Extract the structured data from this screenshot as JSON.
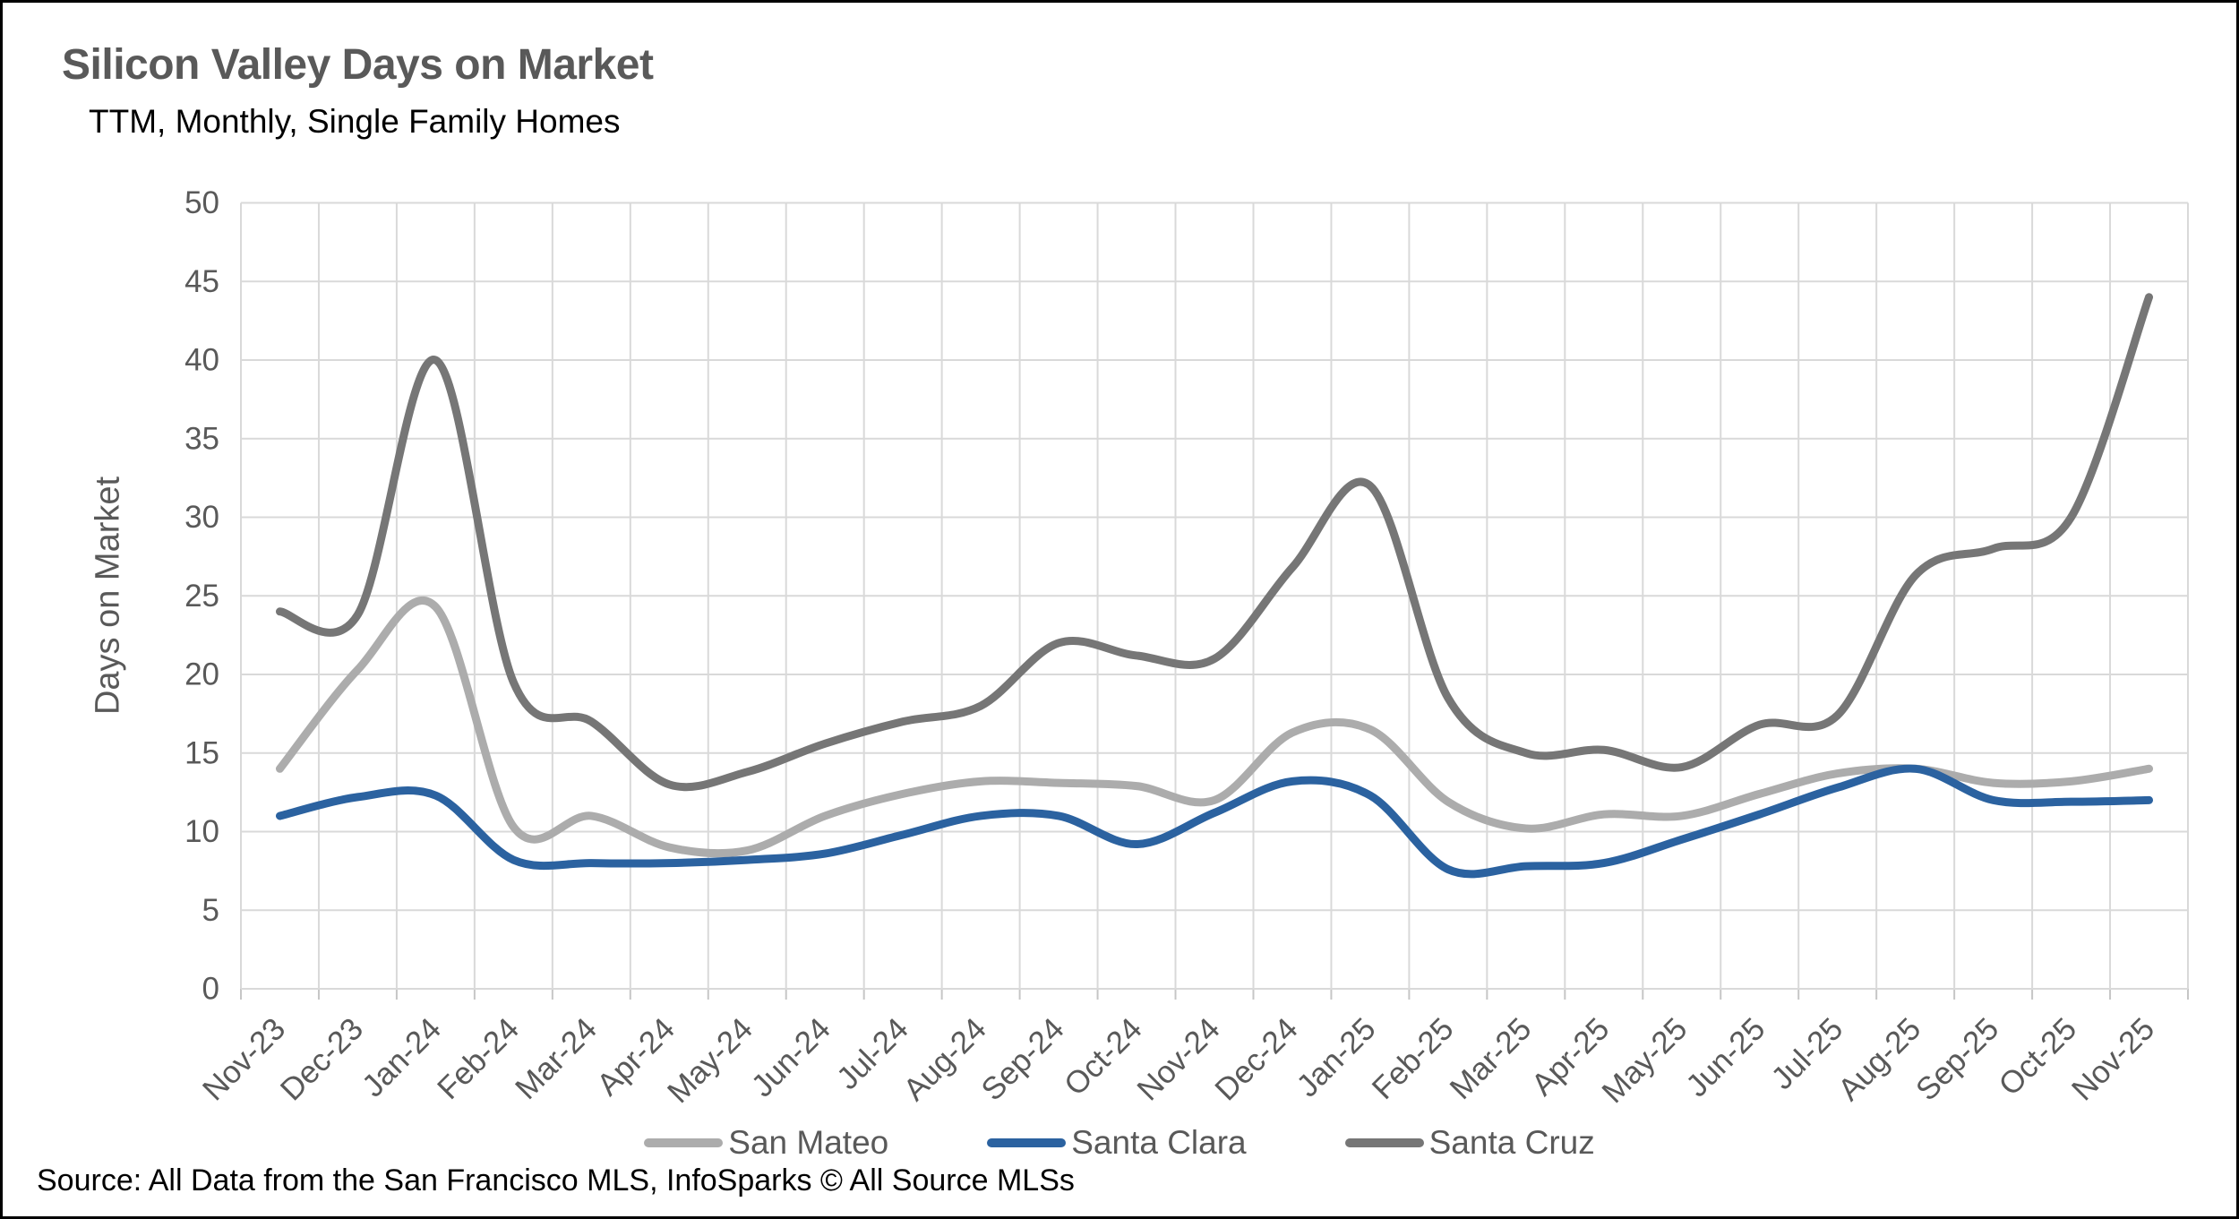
{
  "header": {
    "title": "Silicon Valley Days on Market",
    "subtitle": "TTM, Monthly, Single Family Homes"
  },
  "footer": {
    "source": "Source: All Data from the San Francisco MLS, InfoSparks © All Source MLSs"
  },
  "colors": {
    "text_gray": "#595959",
    "grid": "#D9D9D9",
    "tick": "#C6C6C6",
    "background": "#FFFFFF",
    "border": "#000000"
  },
  "chart_data": {
    "type": "line",
    "title": "Silicon Valley Days on Market",
    "subtitle": "TTM, Monthly, Single Family Homes",
    "xlabel": "",
    "ylabel": "Days on Market",
    "ylim": [
      0,
      50
    ],
    "ytick_step": 5,
    "grid": true,
    "smooth": true,
    "legend_position": "bottom",
    "categories": [
      "Nov-23",
      "Dec-23",
      "Jan-24",
      "Feb-24",
      "Mar-24",
      "Apr-24",
      "May-24",
      "Jun-24",
      "Jul-24",
      "Aug-24",
      "Sep-24",
      "Oct-24",
      "Nov-24",
      "Dec-24",
      "Jan-25",
      "Feb-25",
      "Mar-25",
      "Apr-25",
      "May-25",
      "Jun-25",
      "Jul-25",
      "Aug-25",
      "Sep-25",
      "Oct-25",
      "Nov-25"
    ],
    "series": [
      {
        "name": "San Mateo",
        "color": "#ACACAC",
        "values": [
          14,
          20.3,
          24.3,
          10.3,
          11,
          9,
          8.8,
          11,
          12.4,
          13.2,
          13.1,
          12.9,
          12,
          16.3,
          16.5,
          11.9,
          10.2,
          11.1,
          11,
          12.4,
          13.7,
          14,
          13.1,
          13.2,
          14
        ]
      },
      {
        "name": "Santa Clara",
        "color": "#2B62A0",
        "values": [
          11,
          12.2,
          12.3,
          8.2,
          8,
          8,
          8.2,
          8.6,
          9.8,
          11,
          11,
          9.2,
          11.2,
          13.2,
          12.3,
          7.6,
          7.8,
          8,
          9.5,
          11.1,
          12.8,
          14,
          12,
          11.9,
          12
        ]
      },
      {
        "name": "Santa Cruz",
        "color": "#767676",
        "values": [
          24,
          23.8,
          40,
          19.5,
          17,
          13,
          13.8,
          15.6,
          17,
          18,
          22,
          21.2,
          21,
          26.8,
          32,
          18.5,
          15,
          15.2,
          14.1,
          16.8,
          17.4,
          26.3,
          28,
          30,
          44
        ]
      }
    ]
  }
}
